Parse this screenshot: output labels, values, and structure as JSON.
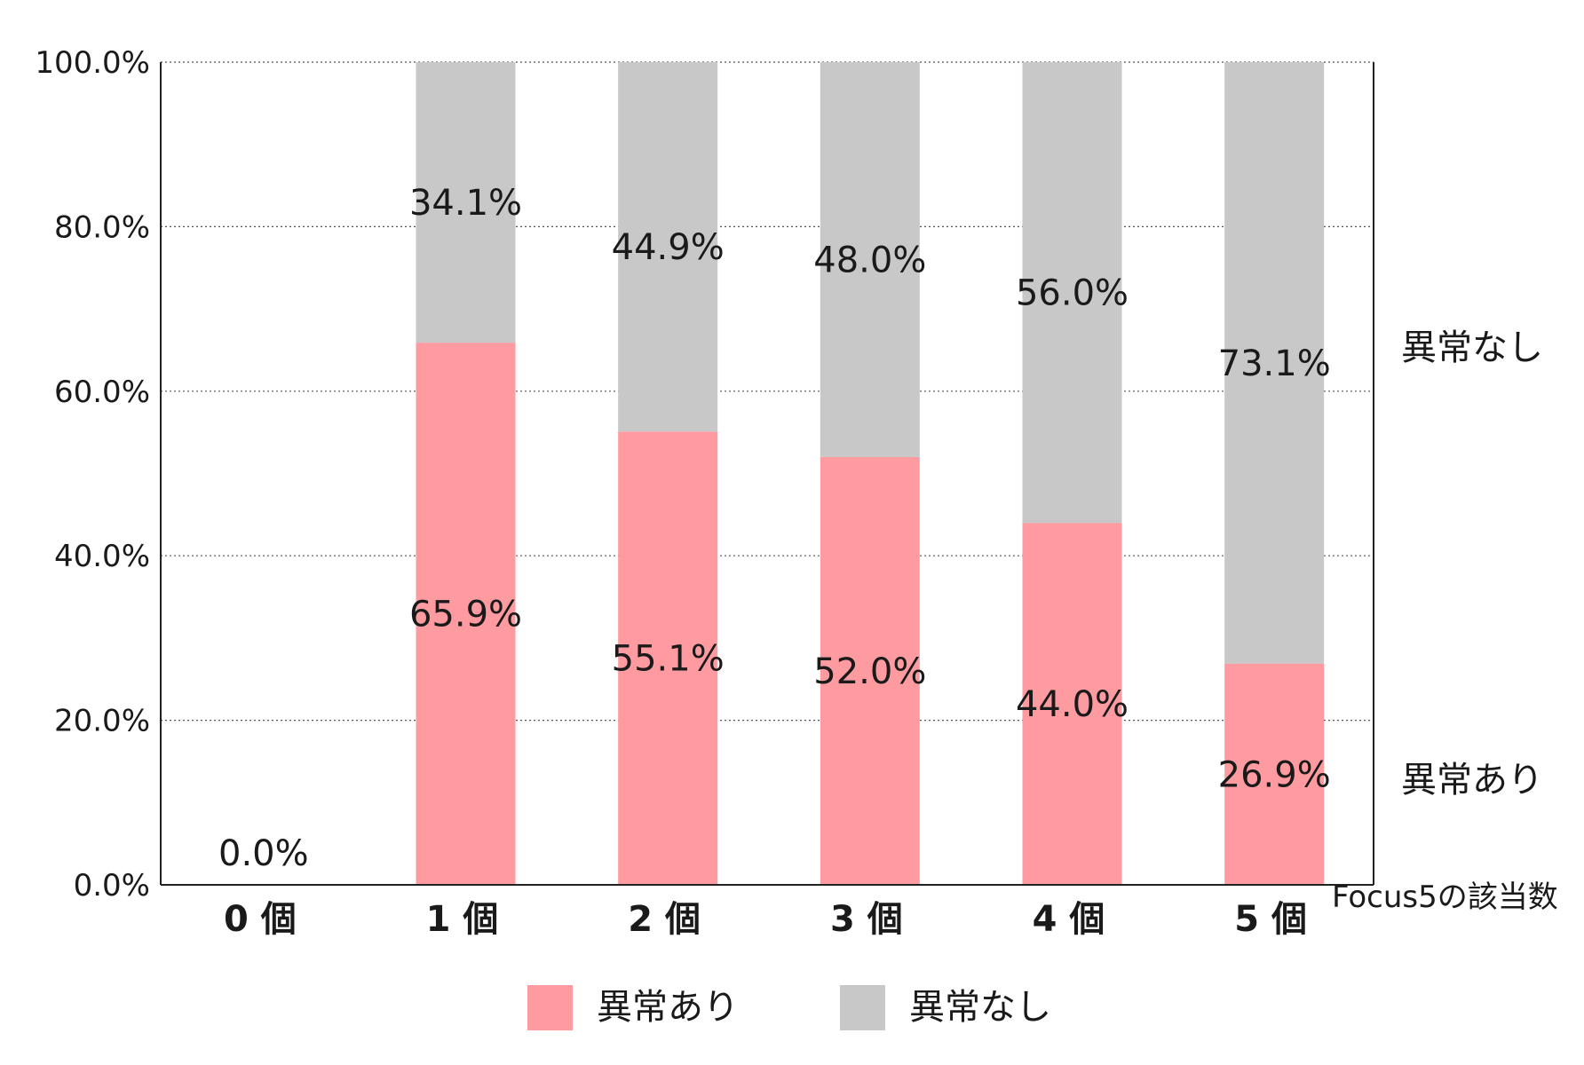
{
  "chart_data": {
    "type": "bar",
    "stacked": true,
    "categories": [
      "0 個",
      "1 個",
      "2 個",
      "3 個",
      "4 個",
      "5 個"
    ],
    "series": [
      {
        "name": "異常あり",
        "color": "#fe9ba1",
        "values": [
          0.0,
          65.9,
          55.1,
          52.0,
          44.0,
          26.9
        ],
        "labels": [
          "0.0%",
          "65.9%",
          "55.1%",
          "52.0%",
          "44.0%",
          "26.9%"
        ]
      },
      {
        "name": "異常なし",
        "color": "#c8c8c8",
        "values": [
          0.0,
          34.1,
          44.9,
          48.0,
          56.0,
          73.1
        ],
        "labels": [
          "",
          "34.1%",
          "44.9%",
          "48.0%",
          "56.0%",
          "73.1%"
        ]
      }
    ],
    "ylim": [
      0,
      100
    ],
    "yticks": [
      0,
      20,
      40,
      60,
      80,
      100
    ],
    "ytick_labels": [
      "0.0%",
      "20.0%",
      "40.0%",
      "60.0%",
      "80.0%",
      "100.0%"
    ],
    "xlabel": "Focus5の該当数",
    "ylabel": "",
    "grid": "horizontal-dotted",
    "side_labels": {
      "top": "異常なし",
      "bottom": "異常あり"
    },
    "legend": {
      "position": "bottom-center",
      "items": [
        {
          "label": "異常あり",
          "color": "#fe9ba1"
        },
        {
          "label": "異常なし",
          "color": "#c8c8c8"
        }
      ]
    }
  }
}
